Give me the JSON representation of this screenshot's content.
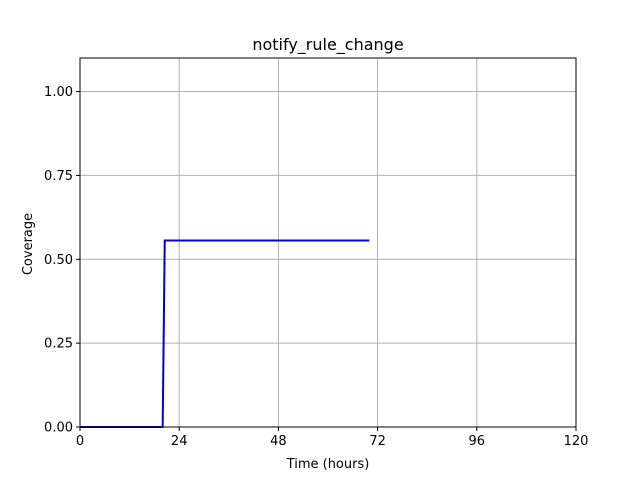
{
  "chart_data": {
    "type": "line",
    "title": "notify_rule_change",
    "xlabel": "Time (hours)",
    "ylabel": "Coverage",
    "xlim": [
      0,
      120
    ],
    "ylim": [
      0,
      1.1
    ],
    "xticks": [
      0,
      24,
      48,
      72,
      96,
      120
    ],
    "xtick_labels": [
      "0",
      "24",
      "48",
      "72",
      "96",
      "120"
    ],
    "yticks": [
      0,
      0.25,
      0.5,
      0.75,
      1.0
    ],
    "ytick_labels": [
      "0.00",
      "0.25",
      "0.50",
      "0.75",
      "1.00"
    ],
    "grid": true,
    "series": [
      {
        "color": "#0000cc",
        "step": true,
        "x": [
          0,
          20,
          20.5,
          70
        ],
        "y": [
          0,
          0,
          0.556,
          0.556
        ]
      }
    ]
  }
}
